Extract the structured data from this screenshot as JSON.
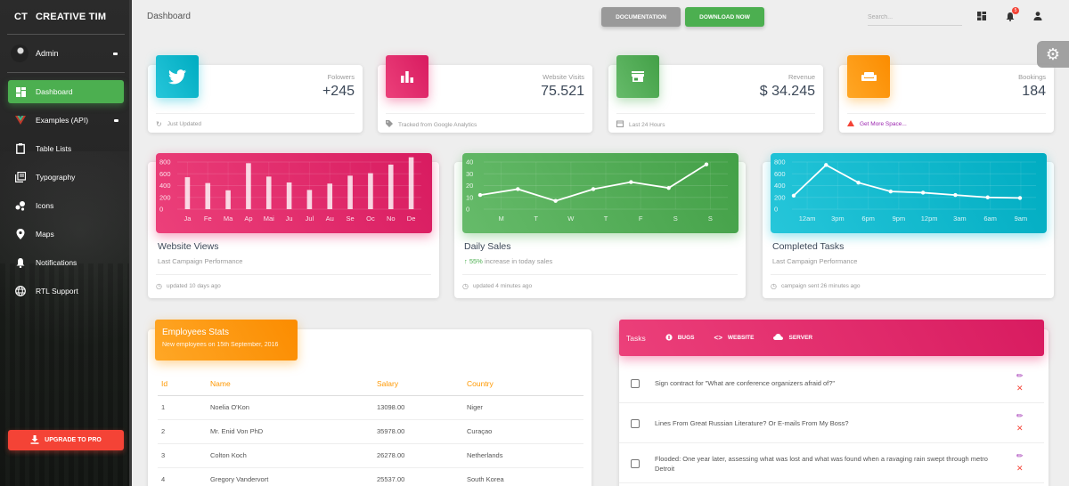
{
  "sidebar": {
    "logo_mini": "CT",
    "logo_text": "CREATIVE TIM",
    "user_name": "Admin",
    "items": [
      {
        "label": "Dashboard",
        "icon": "dashboard-icon",
        "active": true
      },
      {
        "label": "Examples (API)",
        "icon": "vue-logo-icon",
        "has_caret": true
      },
      {
        "label": "Table Lists",
        "icon": "clipboard-icon"
      },
      {
        "label": "Typography",
        "icon": "library-books-icon"
      },
      {
        "label": "Icons",
        "icon": "bubble-chart-icon"
      },
      {
        "label": "Maps",
        "icon": "place-icon"
      },
      {
        "label": "Notifications",
        "icon": "bell-icon"
      },
      {
        "label": "RTL Support",
        "icon": "language-icon"
      }
    ],
    "upgrade_label": "UPGRADE TO PRO"
  },
  "topbar": {
    "title": "Dashboard",
    "documentation_label": "DOCUMENTATION",
    "download_label": "DOWNLOAD NOW",
    "search_placeholder": "Search...",
    "notification_count": "5"
  },
  "stats": [
    {
      "label": "Folowers",
      "value": "+245",
      "footer": "Just Updated",
      "icon": "twitter-icon",
      "footer_icon": "refresh-icon",
      "color": "#00bcd4"
    },
    {
      "label": "Website Visits",
      "value": "75.521",
      "footer": "Tracked from Google Analytics",
      "icon": "equalizer-icon",
      "footer_icon": "tag-icon",
      "color": "#e91e63"
    },
    {
      "label": "Revenue",
      "value": "$ 34.245",
      "footer": "Last 24 Hours",
      "icon": "store-icon",
      "footer_icon": "calendar-icon",
      "color": "#4caf50"
    },
    {
      "label": "Bookings",
      "value": "184",
      "footer": "Get More Space...",
      "icon": "weekend-icon",
      "footer_icon": "warning-icon",
      "color": "#ff9800"
    }
  ],
  "charts": [
    {
      "title": "Website Views",
      "subtitle": "Last Campaign Performance",
      "footer": "updated 10 days ago"
    },
    {
      "title": "Daily Sales",
      "subtitle_highlight": "55%",
      "subtitle": " increase in today sales",
      "footer": "updated 4 minutes ago"
    },
    {
      "title": "Completed Tasks",
      "subtitle": "Last Campaign Performance",
      "footer": "campaign sent 26 minutes ago"
    }
  ],
  "chart_data": [
    {
      "type": "bar",
      "title": "Website Views",
      "categories": [
        "Ja",
        "Fe",
        "Ma",
        "Ap",
        "Mai",
        "Ju",
        "Jul",
        "Au",
        "Se",
        "Oc",
        "No",
        "De"
      ],
      "values": [
        542,
        443,
        320,
        780,
        553,
        453,
        326,
        434,
        568,
        610,
        756,
        895
      ],
      "yticks": [
        "0",
        "200",
        "400",
        "600",
        "800"
      ],
      "ylim": [
        0,
        800
      ],
      "grid": true,
      "color": "#e91e63"
    },
    {
      "type": "line",
      "title": "Daily Sales",
      "categories": [
        "M",
        "T",
        "W",
        "T",
        "F",
        "S",
        "S"
      ],
      "values": [
        12,
        17,
        7,
        17,
        23,
        18,
        38
      ],
      "yticks": [
        "0",
        "10",
        "20",
        "30",
        "40"
      ],
      "ylim": [
        0,
        40
      ],
      "grid": true,
      "color": "#4caf50"
    },
    {
      "type": "line",
      "title": "Completed Tasks",
      "categories": [
        "12am",
        "3pm",
        "6pm",
        "9pm",
        "12pm",
        "3am",
        "6am",
        "9am"
      ],
      "values": [
        230,
        750,
        450,
        300,
        280,
        240,
        200,
        190
      ],
      "yticks": [
        "0",
        "200",
        "400",
        "600",
        "800"
      ],
      "ylim": [
        0,
        800
      ],
      "grid": true,
      "color": "#00bcd4"
    }
  ],
  "employees": {
    "title": "Employees Stats",
    "subtitle": "New employees on 15th September, 2016",
    "columns": [
      "Id",
      "Name",
      "Salary",
      "Country"
    ],
    "rows": [
      [
        "1",
        "Noelia O'Kon",
        "13098.00",
        "Niger"
      ],
      [
        "2",
        "Mr. Enid Von PhD",
        "35978.00",
        "Curaçao"
      ],
      [
        "3",
        "Colton Koch",
        "26278.00",
        "Netherlands"
      ],
      [
        "4",
        "Gregory Vandervort",
        "25537.00",
        "South Korea"
      ]
    ]
  },
  "tasks": {
    "label": "Tasks",
    "tabs": [
      {
        "label": "BUGS",
        "icon": "bug-icon"
      },
      {
        "label": "WEBSITE",
        "icon": "code-icon"
      },
      {
        "label": "SERVER",
        "icon": "cloud-icon"
      }
    ],
    "items": [
      {
        "text": "Sign contract for \"What are conference organizers afraid of?\""
      },
      {
        "text": "Lines From Great Russian Literature? Or E-mails From My Boss?"
      },
      {
        "text": "Flooded: One year later, assessing what was lost and what was found when a ravaging rain swept through metro Detroit"
      }
    ]
  }
}
